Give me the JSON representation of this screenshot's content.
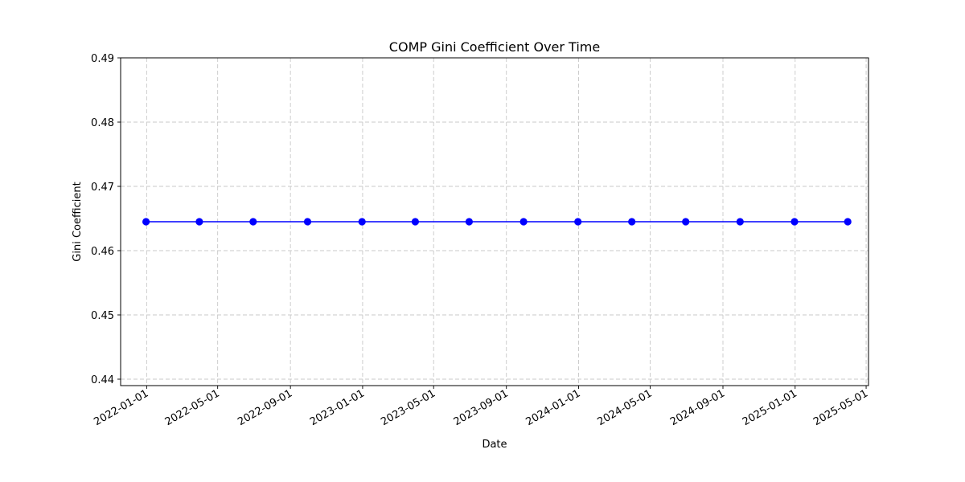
{
  "chart_data": {
    "type": "line",
    "title": "COMP Gini Coefficient Over Time",
    "xlabel": "Date",
    "ylabel": "Gini Coefficient",
    "ylim": [
      0.439,
      0.49
    ],
    "xlim": [
      "2021-11-18",
      "2025-05-05"
    ],
    "grid": true,
    "series": [
      {
        "color": "#0000ff",
        "marker": "circle",
        "x": [
          "2021-12-31",
          "2022-03-31",
          "2022-06-30",
          "2022-09-30",
          "2022-12-31",
          "2023-03-31",
          "2023-06-30",
          "2023-09-30",
          "2023-12-31",
          "2024-03-31",
          "2024-06-30",
          "2024-09-30",
          "2024-12-31",
          "2025-03-31"
        ],
        "values": [
          0.4645,
          0.4645,
          0.4645,
          0.4645,
          0.4645,
          0.4645,
          0.4645,
          0.4645,
          0.4645,
          0.4645,
          0.4645,
          0.4645,
          0.4645,
          0.4645
        ]
      }
    ],
    "x_ticks": [
      "2022-01-01",
      "2022-05-01",
      "2022-09-01",
      "2023-01-01",
      "2023-05-01",
      "2023-09-01",
      "2024-01-01",
      "2024-05-01",
      "2024-09-01",
      "2025-01-01",
      "2025-05-01"
    ],
    "y_ticks": [
      "0.44",
      "0.45",
      "0.46",
      "0.47",
      "0.48",
      "0.49"
    ]
  }
}
